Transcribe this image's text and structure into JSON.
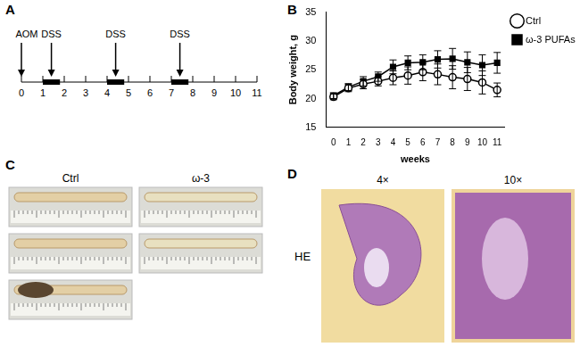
{
  "panels": {
    "A": {
      "label": "A",
      "type": "timeline",
      "weeks": [
        0,
        1,
        2,
        3,
        4,
        5,
        6,
        7,
        8,
        9,
        10,
        11
      ],
      "events": [
        {
          "text": "AOM",
          "week": 0
        },
        {
          "text": "DSS",
          "week": 1.4
        },
        {
          "text": "DSS",
          "week": 4.4
        },
        {
          "text": "DSS",
          "week": 7.4
        }
      ],
      "dss_periods": [
        [
          1,
          1.8
        ],
        [
          4,
          4.8
        ],
        [
          7,
          7.8
        ]
      ]
    },
    "B": {
      "label": "B"
    },
    "C": {
      "label": "C",
      "groups": [
        {
          "title": "Ctrl",
          "samples": 3
        },
        {
          "title": "ω-3",
          "samples": 2
        }
      ]
    },
    "D": {
      "label": "D",
      "row_label": "HE",
      "images": [
        "4×",
        "10×"
      ]
    }
  },
  "chart_data": {
    "type": "line",
    "x_label": "weeks",
    "y_label": "Body weight, g",
    "x": [
      0,
      1,
      2,
      3,
      4,
      5,
      6,
      7,
      8,
      9,
      10,
      11
    ],
    "xlim": [
      -0.5,
      11.5
    ],
    "xticks": [
      0,
      1,
      2,
      3,
      4,
      5,
      6,
      7,
      8,
      9,
      10,
      11
    ],
    "ylim": [
      15,
      35
    ],
    "yticks": [
      15,
      20,
      25,
      30,
      35
    ],
    "grid": false,
    "legend": "upper right",
    "series": [
      {
        "name": "Ctrl",
        "color": "#000000",
        "marker": "circle-open",
        "values": [
          20.3,
          21.8,
          22.5,
          23.0,
          23.6,
          24.0,
          24.6,
          24.2,
          23.7,
          23.4,
          22.8,
          21.5
        ],
        "errors": [
          0.5,
          0.6,
          0.8,
          0.8,
          1.2,
          1.5,
          1.5,
          1.8,
          2.0,
          2.0,
          2.0,
          1.2
        ]
      },
      {
        "name": "ω-3 PUFAs",
        "color": "#000000",
        "marker": "square",
        "values": [
          20.5,
          22.0,
          23.0,
          23.8,
          25.5,
          26.2,
          26.3,
          26.8,
          26.9,
          26.3,
          25.8,
          26.2
        ],
        "errors": [
          0.5,
          0.6,
          0.8,
          0.8,
          1.2,
          1.2,
          1.3,
          1.5,
          1.8,
          1.8,
          1.8,
          1.8
        ]
      }
    ]
  }
}
